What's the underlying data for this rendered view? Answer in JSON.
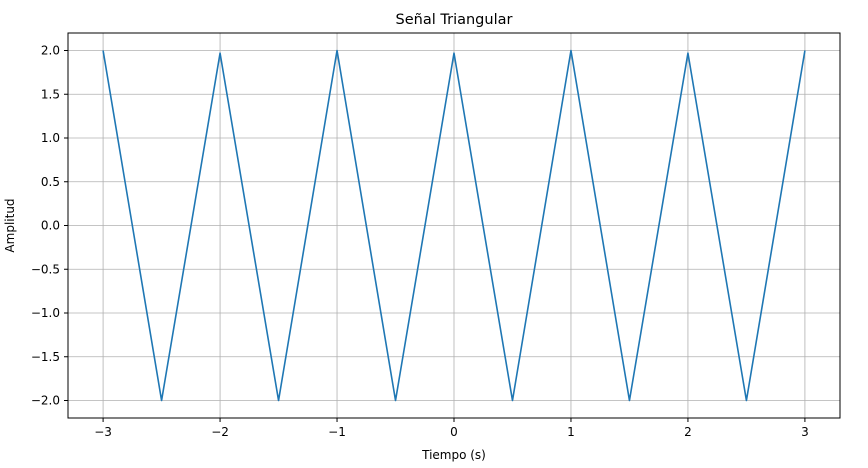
{
  "chart_data": {
    "type": "line",
    "title": "Señal Triangular",
    "xlabel": "Tiempo (s)",
    "ylabel": "Amplitud",
    "xlim": [
      -3.3,
      3.3
    ],
    "ylim": [
      -2.2,
      2.2
    ],
    "xticks": [
      -3,
      -2,
      -1,
      0,
      1,
      2,
      3
    ],
    "xtick_labels": [
      "−3",
      "−2",
      "−1",
      "0",
      "1",
      "2",
      "3"
    ],
    "yticks": [
      -2.0,
      -1.5,
      -1.0,
      -0.5,
      0.0,
      0.5,
      1.0,
      1.5,
      2.0
    ],
    "ytick_labels": [
      "−2.0",
      "−1.5",
      "−1.0",
      "−0.5",
      "0.0",
      "0.5",
      "1.0",
      "1.5",
      "2.0"
    ],
    "grid": true,
    "series": [
      {
        "color": "#1f77b4",
        "x": [
          -3.0,
          -2.5,
          -2.0,
          -1.5,
          -1.0,
          -0.5,
          0.0,
          0.5,
          1.0,
          1.5,
          2.0,
          2.5,
          3.0
        ],
        "y": [
          2.0,
          -2.0,
          1.97,
          -2.0,
          2.0,
          -2.0,
          1.97,
          -2.0,
          2.0,
          -2.0,
          1.97,
          -2.0,
          2.0
        ]
      }
    ]
  }
}
